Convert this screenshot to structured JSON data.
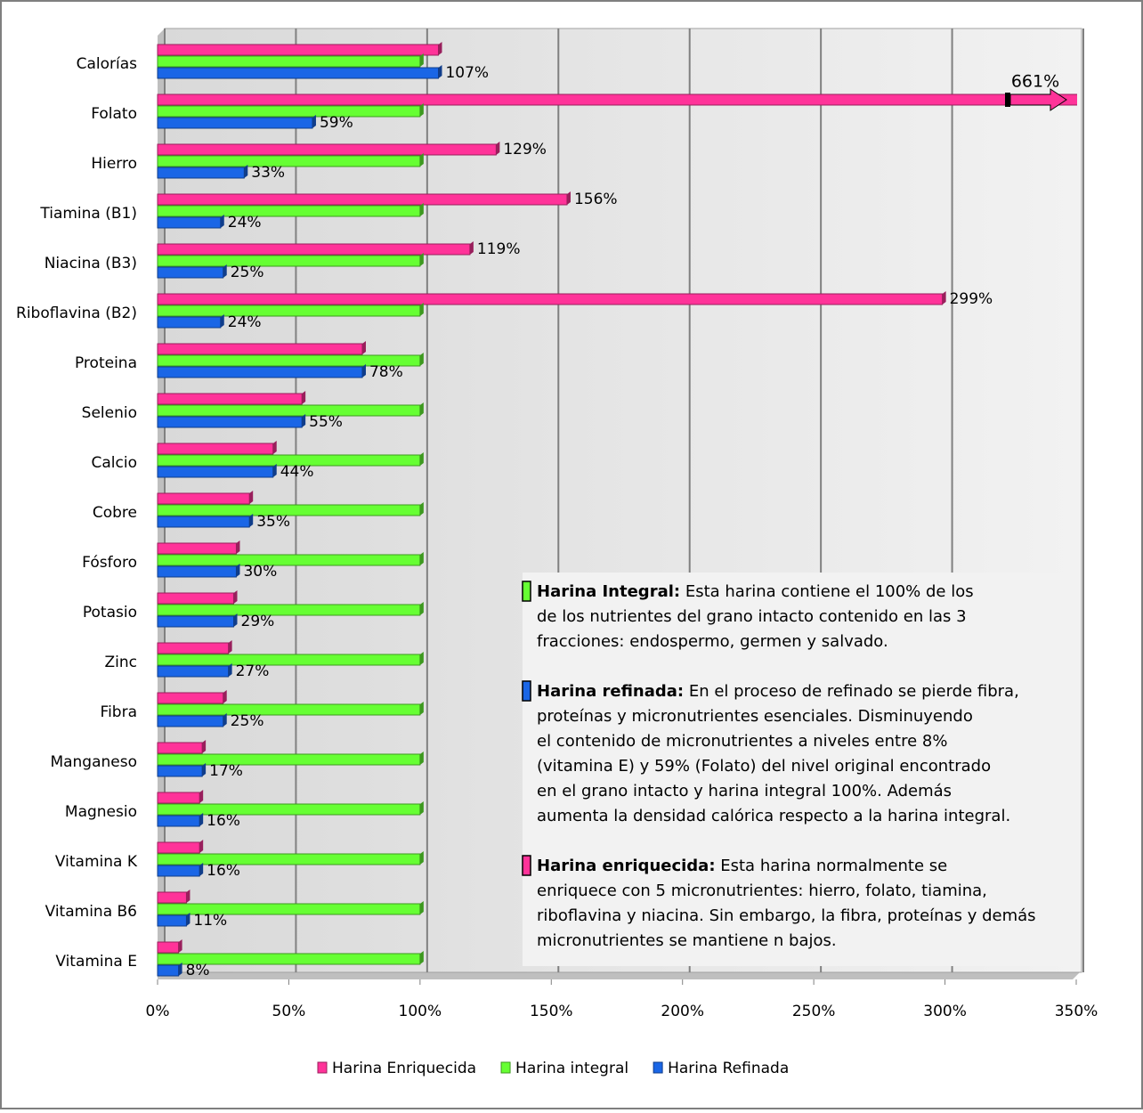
{
  "chart_data": {
    "type": "bar",
    "orientation": "horizontal",
    "categories": [
      "Calorías",
      "Folato",
      "Hierro",
      "Tiamina (B1)",
      "Niacina (B3)",
      "Riboflavina (B2)",
      "Proteina",
      "Selenio",
      "Calcio",
      "Cobre",
      "Fósforo",
      "Potasio",
      "Zinc",
      "Fibra",
      "Manganeso",
      "Magnesio",
      "Vitamina K",
      "Vitamina B6",
      "Vitamina E"
    ],
    "series": [
      {
        "name": "Harina Enriquecida",
        "color": "#ff3399",
        "values": [
          107,
          661,
          129,
          156,
          119,
          299,
          78,
          55,
          44,
          35,
          30,
          29,
          27,
          25,
          17,
          16,
          16,
          11,
          8
        ],
        "value_labels": [
          null,
          "661%",
          "129%",
          "156%",
          "119%",
          "299%",
          null,
          null,
          null,
          null,
          null,
          null,
          null,
          null,
          null,
          null,
          null,
          null,
          null
        ]
      },
      {
        "name": "Harina integral",
        "color": "#66ff33",
        "values": [
          100,
          100,
          100,
          100,
          100,
          100,
          100,
          100,
          100,
          100,
          100,
          100,
          100,
          100,
          100,
          100,
          100,
          100,
          100
        ]
      },
      {
        "name": "Harina Refinada",
        "color": "#1a66e6",
        "values": [
          107,
          59,
          33,
          24,
          25,
          24,
          78,
          55,
          44,
          35,
          30,
          29,
          27,
          25,
          17,
          16,
          16,
          11,
          8
        ],
        "value_labels": [
          "107%",
          "59%",
          "33%",
          "24%",
          "25%",
          "24%",
          "78%",
          "55%",
          "44%",
          "35%",
          "30%",
          "29%",
          "27%",
          "25%",
          "17%",
          "16%",
          "16%",
          "11%",
          "8%"
        ]
      }
    ],
    "xlim": [
      0,
      350
    ],
    "xticks": [
      {
        "value": 0,
        "label": "0%"
      },
      {
        "value": 50,
        "label": "50%"
      },
      {
        "value": 100,
        "label": "100%"
      },
      {
        "value": 150,
        "label": "150%"
      },
      {
        "value": 200,
        "label": "200%"
      },
      {
        "value": 250,
        "label": "250%"
      },
      {
        "value": 300,
        "label": "300%"
      },
      {
        "value": 350,
        "label": "350%"
      }
    ],
    "grid": true,
    "legend": "bottom",
    "annotation": {
      "paragraphs": [
        {
          "color": "#66ff33",
          "heading": "Harina Integral:",
          "lines": [
            " Esta harina contiene el 100% de los",
            "de los  nutrientes del grano intacto contenido en las 3",
            "fracciones: endospermo,  germen y salvado."
          ]
        },
        {
          "color": "#1a66e6",
          "heading": "Harina refinada:",
          "lines": [
            "  En el proceso de refinado se pierde fibra,",
            "proteínas y micronutrientes esenciales.  Disminuyendo",
            "el contenido de micronutrientes  a niveles entre  8%",
            "(vitamina E) y 59% (Folato) del nivel original  encontrado",
            "en el grano intacto y harina integral 100%. Además",
            "aumenta la densidad calórica respecto a la harina integral."
          ]
        },
        {
          "color": "#ff3399",
          "heading": "Harina enriquecida:",
          "lines": [
            "  Esta harina normalmente se",
            "enriquece con 5 micronutrientes: hierro, folato, tiamina,",
            "riboflavina y niacina. Sin embargo, la fibra, proteínas y demás",
            "micronutrientes  se mantiene n  bajos."
          ]
        }
      ]
    }
  }
}
